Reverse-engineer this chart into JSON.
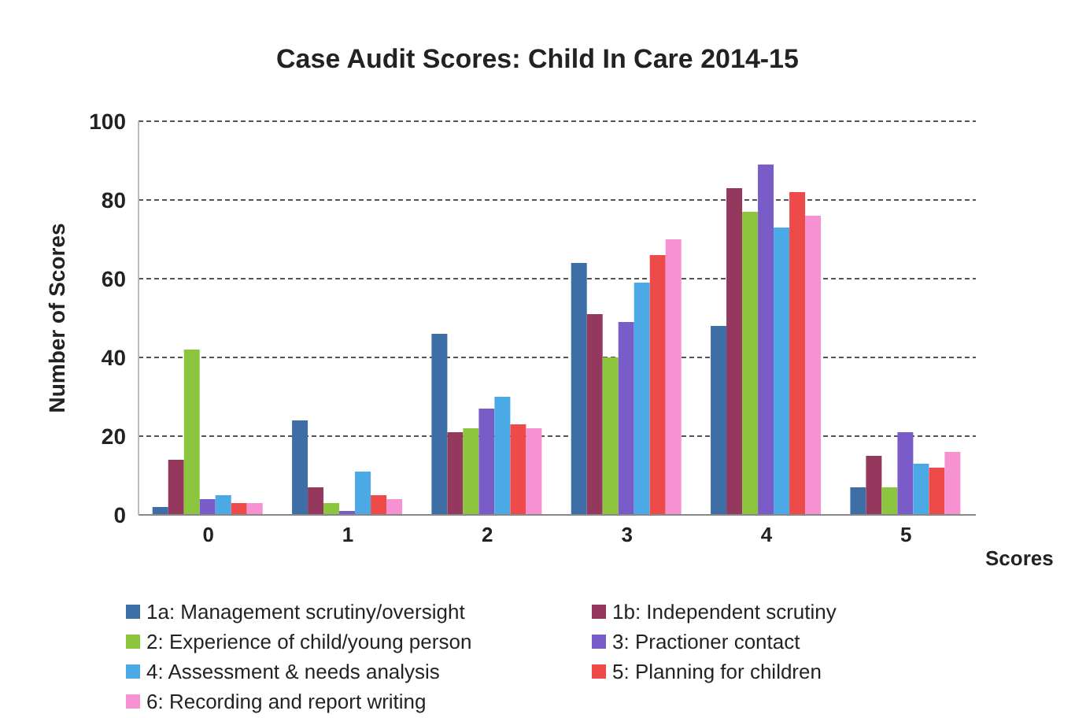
{
  "chart_data": {
    "type": "bar",
    "title": "Case Audit Scores: Child In Care 2014-15",
    "xlabel": "Scores",
    "ylabel": "Number of Scores",
    "categories": [
      "0",
      "1",
      "2",
      "3",
      "4",
      "5"
    ],
    "series": [
      {
        "name": "1a: Management scrutiny/oversight",
        "color": "#3d6fa6",
        "values": [
          2,
          24,
          46,
          64,
          48,
          7
        ]
      },
      {
        "name": "1b: Independent scrutiny",
        "color": "#94385e",
        "values": [
          14,
          7,
          21,
          51,
          83,
          15
        ]
      },
      {
        "name": "2: Experience of child/young person",
        "color": "#8cc63e",
        "values": [
          42,
          3,
          22,
          40,
          77,
          7
        ]
      },
      {
        "name": "3: Practioner contact",
        "color": "#7a5cc9",
        "values": [
          4,
          1,
          27,
          49,
          89,
          21
        ]
      },
      {
        "name": "4: Assessment & needs analysis",
        "color": "#4ba9e6",
        "values": [
          5,
          11,
          30,
          59,
          73,
          13
        ]
      },
      {
        "name": "5: Planning for children",
        "color": "#ee4a4a",
        "values": [
          3,
          5,
          23,
          66,
          82,
          12
        ]
      },
      {
        "name": "6: Recording and report writing",
        "color": "#f792d2",
        "values": [
          3,
          4,
          22,
          70,
          76,
          16
        ]
      }
    ],
    "ylim": [
      0,
      100
    ],
    "yticks": [
      0,
      20,
      40,
      60,
      80,
      100
    ],
    "grid": "y",
    "legend": "bottom"
  }
}
